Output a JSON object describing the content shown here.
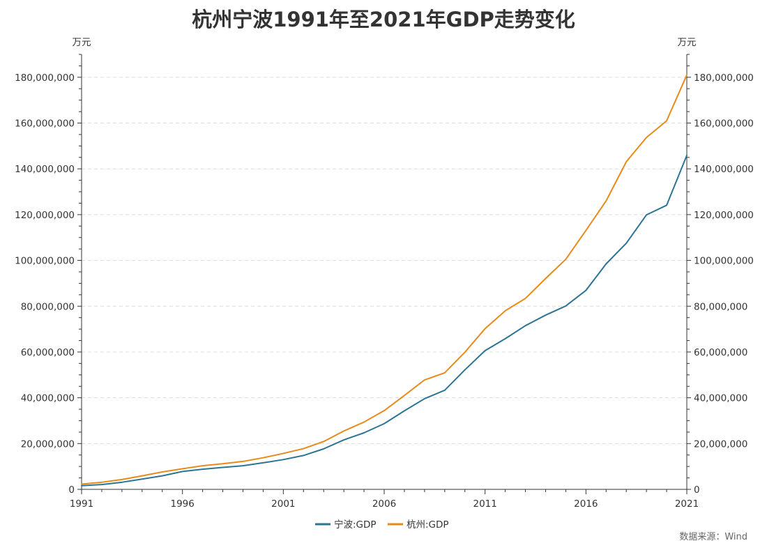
{
  "chart_data": {
    "type": "line",
    "title": "杭州宁波1991年至2021年GDP走势变化",
    "unit_left": "万元",
    "unit_right": "万元",
    "source_note": "数据来源：Wind",
    "x_ticks": [
      "1991",
      "1996",
      "2001",
      "2006",
      "2011",
      "2016",
      "2021"
    ],
    "y_ticks": [
      "0",
      "20,000,000",
      "40,000,000",
      "60,000,000",
      "80,000,000",
      "100,000,000",
      "120,000,000",
      "140,000,000",
      "160,000,000",
      "180,000,000"
    ],
    "ylim": [
      0,
      190000000
    ],
    "xlim": [
      1991,
      2021
    ],
    "grid": "horizontal-dashed",
    "legend_position": "bottom-center",
    "x": [
      1991,
      1992,
      1993,
      1994,
      1995,
      1996,
      1997,
      1998,
      1999,
      2000,
      2001,
      2002,
      2003,
      2004,
      2005,
      2006,
      2007,
      2008,
      2009,
      2010,
      2011,
      2012,
      2013,
      2014,
      2015,
      2016,
      2017,
      2018,
      2019,
      2020,
      2021
    ],
    "series": [
      {
        "name": "宁波:GDP",
        "color": "#2b7496",
        "values": [
          1600000,
          2100000,
          3100000,
          4500000,
          5900000,
          7800000,
          8800000,
          9600000,
          10300000,
          11600000,
          13000000,
          14800000,
          17700000,
          21600000,
          24700000,
          28700000,
          34300000,
          39600000,
          43300000,
          52200000,
          60600000,
          65800000,
          71500000,
          76100000,
          80100000,
          86900000,
          98500000,
          107500000,
          119900000,
          124100000,
          145900000
        ]
      },
      {
        "name": "杭州:GDP",
        "color": "#e88a1a",
        "values": [
          2300000,
          3100000,
          4300000,
          5900000,
          7600000,
          9000000,
          10300000,
          11200000,
          12200000,
          13800000,
          15700000,
          17800000,
          20900000,
          25500000,
          29400000,
          34400000,
          41000000,
          47800000,
          50900000,
          59900000,
          70200000,
          78000000,
          83400000,
          92100000,
          100500000,
          113100000,
          126000000,
          143100000,
          153700000,
          161000000,
          181000000
        ]
      }
    ]
  }
}
